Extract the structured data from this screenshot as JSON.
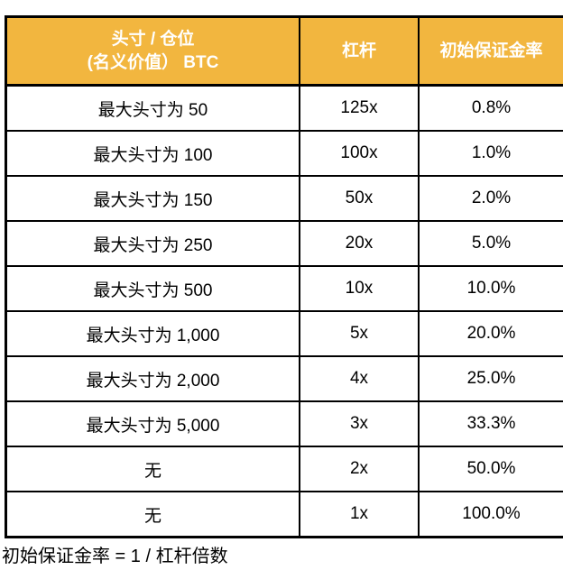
{
  "chart_data": {
    "type": "table",
    "columns": [
      "头寸 / 仓位 (名义价值） BTC",
      "杠杆",
      "初始保证金率"
    ],
    "rows": [
      {
        "position": "最大头寸为 50",
        "leverage": "125x",
        "initial_margin_rate": "0.8%"
      },
      {
        "position": "最大头寸为 100",
        "leverage": "100x",
        "initial_margin_rate": "1.0%"
      },
      {
        "position": "最大头寸为 150",
        "leverage": "50x",
        "initial_margin_rate": "2.0%"
      },
      {
        "position": "最大头寸为 250",
        "leverage": "20x",
        "initial_margin_rate": "5.0%"
      },
      {
        "position": "最大头寸为 500",
        "leverage": "10x",
        "initial_margin_rate": "10.0%"
      },
      {
        "position": "最大头寸为 1,000",
        "leverage": "5x",
        "initial_margin_rate": "20.0%"
      },
      {
        "position": "最大头寸为 2,000",
        "leverage": "4x",
        "initial_margin_rate": "25.0%"
      },
      {
        "position": "最大头寸为 5,000",
        "leverage": "3x",
        "initial_margin_rate": "33.3%"
      },
      {
        "position": "无",
        "leverage": "2x",
        "initial_margin_rate": "50.0%"
      },
      {
        "position": "无",
        "leverage": "1x",
        "initial_margin_rate": "100.0%"
      }
    ],
    "footnote": "初始保证金率 = 1 / 杠杆倍数"
  },
  "header": {
    "col1_line1": "头寸 / 仓位",
    "col1_line2": "(名义价值） BTC",
    "col2": "杠杆",
    "col3": "初始保证金率"
  },
  "colors": {
    "header_bg": "#F2B63F",
    "header_text": "#FFFFFF",
    "border": "#000000",
    "body_text": "#000000",
    "page_bg": "#FFFFFF"
  }
}
